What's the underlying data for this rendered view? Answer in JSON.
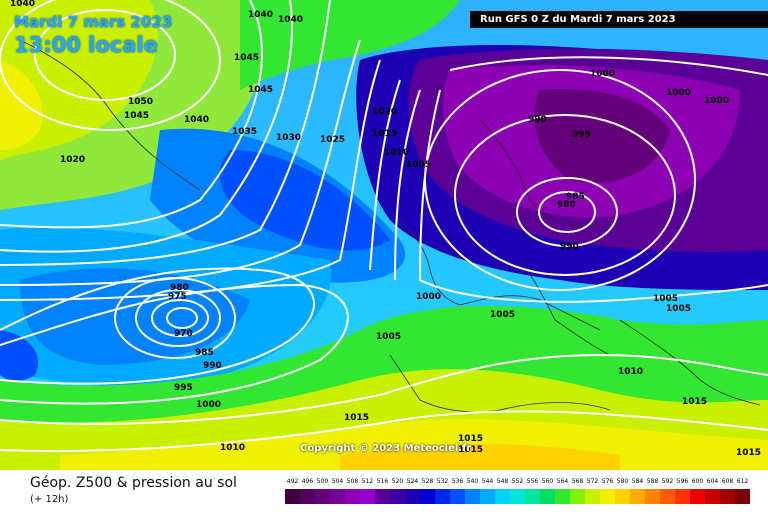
{
  "header": {
    "date_title": "Mardi 7 mars 2023",
    "local_time": "13:00 locale",
    "run_banner": "Run GFS 0 Z du Mardi 7 mars 2023"
  },
  "map": {
    "isobar_labels": [
      "1040",
      "1040",
      "1040",
      "1045",
      "1045",
      "1050",
      "1045",
      "1040",
      "1035",
      "1030",
      "1025",
      "1020",
      "1015",
      "1010",
      "1005",
      "1000",
      "1000",
      "1000",
      "990",
      "995",
      "985",
      "980",
      "990",
      "1020",
      "980",
      "975",
      "970",
      "985",
      "990",
      "995",
      "1000",
      "1010",
      "1015",
      "1005",
      "1000",
      "1005",
      "1005",
      "1005",
      "1010",
      "1015",
      "1015",
      "1015",
      "1015"
    ],
    "copyright": "Copyright © 2023 Meteociel.fr"
  },
  "footer": {
    "title": "Géop. Z500 & pression au sol",
    "lead_time": "(+ 12h)"
  },
  "scale": {
    "labels": [
      "492",
      "496",
      "500",
      "504",
      "508",
      "512",
      "516",
      "520",
      "524",
      "528",
      "532",
      "536",
      "540",
      "544",
      "548",
      "552",
      "556",
      "560",
      "564",
      "568",
      "572",
      "576",
      "580",
      "584",
      "588",
      "592",
      "596",
      "600",
      "604",
      "608",
      "612"
    ],
    "colors": [
      "#3c003c",
      "#50005a",
      "#640078",
      "#780096",
      "#8c00b4",
      "#9600c8",
      "#5a0096",
      "#3c00a0",
      "#1e00b4",
      "#0000d2",
      "#0028e6",
      "#0050ff",
      "#0082ff",
      "#00aaff",
      "#00d2ff",
      "#00e6dc",
      "#00e6a0",
      "#00dc64",
      "#32e632",
      "#82f000",
      "#c8f000",
      "#f0f000",
      "#ffd200",
      "#ffaa00",
      "#ff8200",
      "#ff5a00",
      "#ff3200",
      "#f00000",
      "#c80000",
      "#a00000",
      "#780000"
    ]
  }
}
